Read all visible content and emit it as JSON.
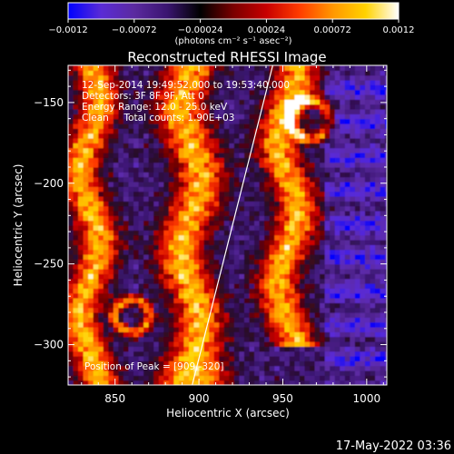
{
  "chart_data": {
    "type": "heatmap",
    "title": "Reconstructed RHESSI Image",
    "xlabel": "Heliocentric X (arcsec)",
    "ylabel": "Heliocentric Y (arcsec)",
    "xlim": [
      822,
      1012
    ],
    "ylim": [
      -325,
      -127
    ],
    "xticks": [
      {
        "value": 850,
        "label": "850"
      },
      {
        "value": 900,
        "label": "900"
      },
      {
        "value": 950,
        "label": "950"
      },
      {
        "value": 1000,
        "label": "1000"
      }
    ],
    "yticks": [
      {
        "value": -150,
        "label": "−150"
      },
      {
        "value": -200,
        "label": "−200"
      },
      {
        "value": -250,
        "label": "−250"
      },
      {
        "value": -300,
        "label": "−300"
      }
    ],
    "colorbar": {
      "range": [
        -0.0012,
        0.0012
      ],
      "ticks": [
        {
          "value": -0.0012,
          "label": "−0.0012"
        },
        {
          "value": -0.00072,
          "label": "−0.00072"
        },
        {
          "value": -0.00024,
          "label": "−0.00024"
        },
        {
          "value": 0.00024,
          "label": "0.00024"
        },
        {
          "value": 0.00072,
          "label": "0.00072"
        },
        {
          "value": 0.0012,
          "label": "0.0012"
        }
      ],
      "unit_label": "(photons cm⁻² s⁻¹ asec⁻²)",
      "colormap": [
        "#0000ff",
        "#5a2bd6",
        "#5b2aa0",
        "#3a1570",
        "#000000",
        "#7a0000",
        "#c80000",
        "#ff3c00",
        "#ff9600",
        "#ffd200",
        "#ffffff"
      ]
    },
    "annotations": [
      "12-Sep-2014 19:49:52.000 to 19:53:40.000",
      "Detectors: 3F 8F 9F, Att 0",
      "Energy Range: 12.0 - 25.0 keV",
      "Clean     Total counts: 1.90E+03"
    ],
    "peak_label": "Position of Peak = [909,-320]",
    "peak": {
      "x": 909,
      "y": -320
    },
    "limb_line": [
      [
        896,
        -325
      ],
      [
        944,
        -127
      ]
    ],
    "structures": [
      {
        "kind": "bright_band",
        "x_center": 895,
        "width": 30,
        "y_range": [
          -325,
          -127
        ]
      },
      {
        "kind": "bright_band",
        "x_center": 953,
        "width": 26,
        "y_range": [
          -300,
          -127
        ]
      },
      {
        "kind": "bright_band",
        "x_center": 835,
        "width": 24,
        "y_range": [
          -325,
          -127
        ]
      },
      {
        "kind": "ring",
        "x": 860,
        "y": -282,
        "r": 10
      },
      {
        "kind": "ring",
        "x": 966,
        "y": -160,
        "r": 12
      }
    ]
  },
  "timestamp": "17-May-2022 03:36"
}
